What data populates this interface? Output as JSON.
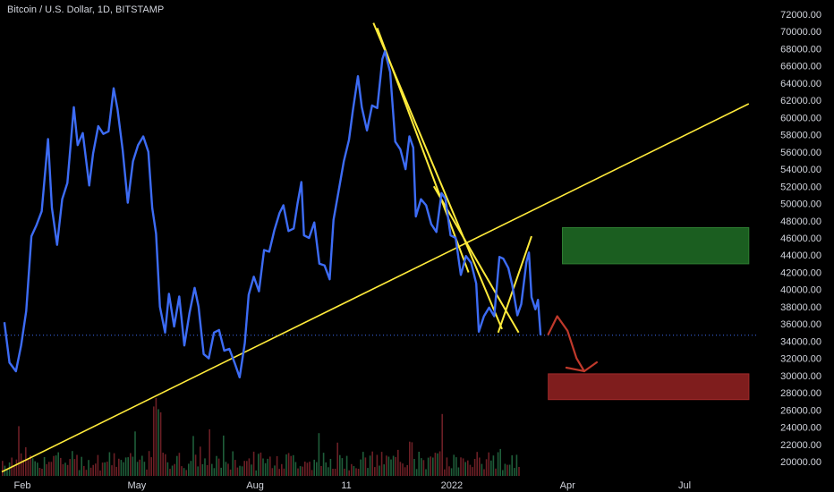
{
  "chart_data": {
    "type": "line",
    "title": "Bitcoin / U.S. Dollar, 1D, BITSTAMP",
    "xlabel": "",
    "ylabel": "",
    "ylim": [
      18800,
      72800
    ],
    "y_ticks": [
      20000,
      22000,
      24000,
      26000,
      28000,
      30000,
      32000,
      34000,
      36000,
      38000,
      40000,
      42000,
      44000,
      46000,
      48000,
      50000,
      52000,
      54000,
      56000,
      58000,
      60000,
      62000,
      64000,
      66000,
      68000,
      70000,
      72000
    ],
    "y_tick_labels": [
      "20000.00",
      "22000.00",
      "24000.00",
      "26000.00",
      "28000.00",
      "30000.00",
      "32000.00",
      "34000.00",
      "36000.00",
      "38000.00",
      "40000.00",
      "42000.00",
      "44000.00",
      "46000.00",
      "48000.00",
      "50000.00",
      "52000.00",
      "54000.00",
      "56000.00",
      "58000.00",
      "60000.00",
      "62000.00",
      "64000.00",
      "66000.00",
      "68000.00",
      "70000.00",
      "72000.00"
    ],
    "x_ticks": [
      {
        "label": "Feb",
        "date": "2021-02-01"
      },
      {
        "label": "May",
        "date": "2021-05-01"
      },
      {
        "label": "Aug",
        "date": "2021-08-01"
      },
      {
        "label": "11",
        "date": "2021-10-11"
      },
      {
        "label": "2022",
        "date": "2022-01-01"
      },
      {
        "label": "Apr",
        "date": "2022-04-01"
      },
      {
        "label": "Jul",
        "date": "2022-07-01"
      }
    ],
    "grid": false,
    "colors": {
      "price": "#3d6cf5",
      "trendline": "#ffeb3b",
      "green_zone": "#1b5e20",
      "red_zone": "#7f1d1d",
      "arrow": "#c0392b",
      "last_price_line": "#3d6cf5"
    },
    "series": [
      {
        "values": [
          {
            "x": "2021-01-18",
            "y": 36200
          },
          {
            "x": "2021-01-22",
            "y": 31500
          },
          {
            "x": "2021-01-27",
            "y": 30500
          },
          {
            "x": "2021-01-31",
            "y": 33500
          },
          {
            "x": "2021-02-04",
            "y": 37500
          },
          {
            "x": "2021-02-08",
            "y": 46200
          },
          {
            "x": "2021-02-12",
            "y": 47500
          },
          {
            "x": "2021-02-16",
            "y": 49100
          },
          {
            "x": "2021-02-21",
            "y": 57500
          },
          {
            "x": "2021-02-24",
            "y": 49500
          },
          {
            "x": "2021-02-28",
            "y": 45200
          },
          {
            "x": "2021-03-04",
            "y": 50500
          },
          {
            "x": "2021-03-08",
            "y": 52400
          },
          {
            "x": "2021-03-13",
            "y": 61200
          },
          {
            "x": "2021-03-16",
            "y": 56800
          },
          {
            "x": "2021-03-20",
            "y": 58200
          },
          {
            "x": "2021-03-25",
            "y": 52100
          },
          {
            "x": "2021-03-28",
            "y": 55800
          },
          {
            "x": "2021-04-01",
            "y": 59000
          },
          {
            "x": "2021-04-05",
            "y": 58100
          },
          {
            "x": "2021-04-09",
            "y": 58400
          },
          {
            "x": "2021-04-13",
            "y": 63400
          },
          {
            "x": "2021-04-16",
            "y": 61000
          },
          {
            "x": "2021-04-20",
            "y": 56200
          },
          {
            "x": "2021-04-24",
            "y": 50100
          },
          {
            "x": "2021-04-28",
            "y": 54900
          },
          {
            "x": "2021-05-02",
            "y": 56800
          },
          {
            "x": "2021-05-06",
            "y": 57800
          },
          {
            "x": "2021-05-10",
            "y": 56000
          },
          {
            "x": "2021-05-13",
            "y": 49500
          },
          {
            "x": "2021-05-16",
            "y": 46500
          },
          {
            "x": "2021-05-19",
            "y": 38000
          },
          {
            "x": "2021-05-23",
            "y": 35000
          },
          {
            "x": "2021-05-26",
            "y": 39500
          },
          {
            "x": "2021-05-30",
            "y": 35700
          },
          {
            "x": "2021-06-03",
            "y": 39200
          },
          {
            "x": "2021-06-07",
            "y": 33500
          },
          {
            "x": "2021-06-11",
            "y": 37300
          },
          {
            "x": "2021-06-15",
            "y": 40200
          },
          {
            "x": "2021-06-18",
            "y": 38000
          },
          {
            "x": "2021-06-22",
            "y": 32500
          },
          {
            "x": "2021-06-26",
            "y": 32000
          },
          {
            "x": "2021-06-30",
            "y": 35000
          },
          {
            "x": "2021-07-04",
            "y": 35300
          },
          {
            "x": "2021-07-08",
            "y": 32900
          },
          {
            "x": "2021-07-12",
            "y": 33100
          },
          {
            "x": "2021-07-16",
            "y": 31500
          },
          {
            "x": "2021-07-20",
            "y": 29800
          },
          {
            "x": "2021-07-24",
            "y": 33800
          },
          {
            "x": "2021-07-27",
            "y": 39400
          },
          {
            "x": "2021-07-31",
            "y": 41500
          },
          {
            "x": "2021-08-04",
            "y": 39800
          },
          {
            "x": "2021-08-08",
            "y": 44600
          },
          {
            "x": "2021-08-12",
            "y": 44400
          },
          {
            "x": "2021-08-16",
            "y": 46900
          },
          {
            "x": "2021-08-20",
            "y": 48900
          },
          {
            "x": "2021-08-23",
            "y": 49800
          },
          {
            "x": "2021-08-27",
            "y": 46800
          },
          {
            "x": "2021-08-31",
            "y": 47100
          },
          {
            "x": "2021-09-03",
            "y": 50000
          },
          {
            "x": "2021-09-06",
            "y": 52500
          },
          {
            "x": "2021-09-08",
            "y": 46300
          },
          {
            "x": "2021-09-12",
            "y": 46000
          },
          {
            "x": "2021-09-16",
            "y": 47800
          },
          {
            "x": "2021-09-20",
            "y": 43000
          },
          {
            "x": "2021-09-24",
            "y": 42800
          },
          {
            "x": "2021-09-28",
            "y": 41200
          },
          {
            "x": "2021-10-01",
            "y": 48100
          },
          {
            "x": "2021-10-05",
            "y": 51500
          },
          {
            "x": "2021-10-09",
            "y": 54900
          },
          {
            "x": "2021-10-13",
            "y": 57400
          },
          {
            "x": "2021-10-16",
            "y": 60800
          },
          {
            "x": "2021-10-20",
            "y": 64800
          },
          {
            "x": "2021-10-23",
            "y": 61200
          },
          {
            "x": "2021-10-27",
            "y": 58500
          },
          {
            "x": "2021-10-31",
            "y": 61400
          },
          {
            "x": "2021-11-04",
            "y": 61100
          },
          {
            "x": "2021-11-08",
            "y": 66800
          },
          {
            "x": "2021-11-10",
            "y": 67700
          },
          {
            "x": "2021-11-14",
            "y": 65300
          },
          {
            "x": "2021-11-18",
            "y": 57200
          },
          {
            "x": "2021-11-22",
            "y": 56300
          },
          {
            "x": "2021-11-26",
            "y": 54000
          },
          {
            "x": "2021-11-29",
            "y": 57800
          },
          {
            "x": "2021-12-02",
            "y": 56500
          },
          {
            "x": "2021-12-04",
            "y": 48500
          },
          {
            "x": "2021-12-08",
            "y": 50500
          },
          {
            "x": "2021-12-12",
            "y": 49800
          },
          {
            "x": "2021-12-16",
            "y": 47600
          },
          {
            "x": "2021-12-20",
            "y": 46700
          },
          {
            "x": "2021-12-24",
            "y": 51200
          },
          {
            "x": "2021-12-27",
            "y": 50600
          },
          {
            "x": "2021-12-31",
            "y": 46300
          },
          {
            "x": "2022-01-04",
            "y": 46000
          },
          {
            "x": "2022-01-08",
            "y": 41700
          },
          {
            "x": "2022-01-12",
            "y": 43900
          },
          {
            "x": "2022-01-16",
            "y": 43100
          },
          {
            "x": "2022-01-20",
            "y": 40700
          },
          {
            "x": "2022-01-22",
            "y": 35100
          },
          {
            "x": "2022-01-26",
            "y": 36900
          },
          {
            "x": "2022-01-30",
            "y": 37900
          },
          {
            "x": "2022-02-03",
            "y": 36900
          },
          {
            "x": "2022-02-07",
            "y": 43800
          },
          {
            "x": "2022-02-10",
            "y": 43600
          },
          {
            "x": "2022-02-14",
            "y": 42500
          },
          {
            "x": "2022-02-17",
            "y": 40500
          },
          {
            "x": "2022-02-21",
            "y": 37000
          },
          {
            "x": "2022-02-24",
            "y": 38300
          },
          {
            "x": "2022-02-28",
            "y": 43200
          },
          {
            "x": "2022-03-02",
            "y": 44300
          },
          {
            "x": "2022-03-04",
            "y": 39100
          },
          {
            "x": "2022-03-07",
            "y": 37700
          },
          {
            "x": "2022-03-09",
            "y": 38800
          },
          {
            "x": "2022-03-11",
            "y": 34700
          }
        ]
      }
    ],
    "last_price": 34700,
    "trendlines": [
      {
        "from": {
          "x": "2021-01-16",
          "y": 18800
        },
        "to": {
          "x": "2022-08-20",
          "y": 61600
        }
      },
      {
        "from": {
          "x": "2021-11-01",
          "y": 71000
        },
        "to": {
          "x": "2022-02-09",
          "y": 35400
        }
      },
      {
        "from": {
          "x": "2021-11-04",
          "y": 70400
        },
        "to": {
          "x": "2022-01-14",
          "y": 42000
        }
      },
      {
        "from": {
          "x": "2021-12-18",
          "y": 52000
        },
        "to": {
          "x": "2022-02-22",
          "y": 35000
        }
      },
      {
        "from": {
          "x": "2022-02-06",
          "y": 35000
        },
        "to": {
          "x": "2022-03-04",
          "y": 46200
        }
      }
    ],
    "zones": [
      {
        "kind": "green",
        "x_from": "2022-03-28",
        "x_to": "2022-08-20",
        "y_from": 43000,
        "y_to": 47200
      },
      {
        "kind": "red",
        "x_from": "2022-03-17",
        "x_to": "2022-08-20",
        "y_from": 27200,
        "y_to": 30200
      }
    ],
    "projection_arrow": [
      {
        "x": "2022-03-17",
        "y": 34800
      },
      {
        "x": "2022-03-24",
        "y": 36900
      },
      {
        "x": "2022-04-01",
        "y": 35200
      },
      {
        "x": "2022-04-08",
        "y": 32000
      },
      {
        "x": "2022-04-14",
        "y": 30500
      }
    ],
    "volume_bars": "decorative"
  }
}
